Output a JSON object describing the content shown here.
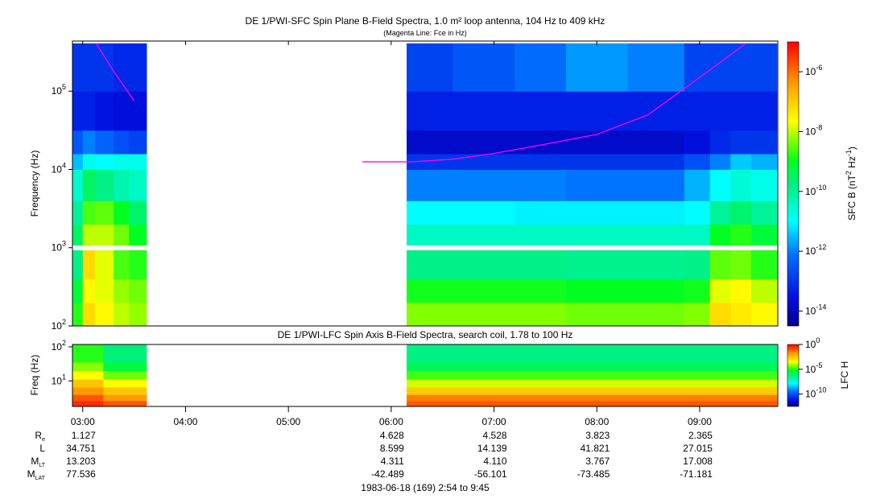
{
  "chart_data": [
    {
      "type": "heatmap",
      "title": "DE 1/PWI-SFC  Spin Plane B-Field Spectra, 1.0 m² loop antenna, 104 Hz to 409 kHz",
      "subtitle": "(Magenta Line: Fce in Hz)",
      "ylabel": "Frequency (Hz)",
      "yscale": "log",
      "ylim": [
        100,
        409000
      ],
      "y_ticks": [
        {
          "base": "10",
          "exp": "2"
        },
        {
          "base": "10",
          "exp": "3"
        },
        {
          "base": "10",
          "exp": "4"
        },
        {
          "base": "10",
          "exp": "5"
        }
      ],
      "xlim_hours": [
        2.9,
        9.75
      ],
      "colorbar": {
        "label": "SFC B (nT² Hz⁻¹)",
        "label_main": "SFC B (nT",
        "label_sup1": "2",
        "label_mid": " Hz",
        "label_sup2": "-1",
        "label_end": ")",
        "range_log10": [
          -14.5,
          -5
        ],
        "ticks": [
          {
            "base": "10",
            "exp": "-6"
          },
          {
            "base": "10",
            "exp": "-8"
          },
          {
            "base": "10",
            "exp": "-10"
          },
          {
            "base": "10",
            "exp": "-12"
          },
          {
            "base": "10",
            "exp": "-14"
          }
        ]
      },
      "freq_band_edges_log10": [
        2.0,
        2.3,
        2.6,
        3.0,
        3.3,
        3.6,
        4.0,
        4.2,
        4.5,
        5.0,
        5.61
      ],
      "columns": [
        {
          "t": [
            2.9,
            3.0
          ],
          "v": [
            -8.8,
            -9.2,
            -9.8,
            -9.5,
            -10.0,
            -10.5,
            -11.5,
            -12.5,
            -13.3,
            -13.0
          ]
        },
        {
          "t": [
            3.0,
            3.12
          ],
          "v": [
            -7.2,
            -7.6,
            -7.2,
            -8.0,
            -8.6,
            -9.5,
            -10.8,
            -12.0,
            -13.3,
            -13.0
          ]
        },
        {
          "t": [
            3.12,
            3.3
          ],
          "v": [
            -7.6,
            -7.8,
            -7.8,
            -8.0,
            -8.5,
            -9.8,
            -11.0,
            -12.3,
            -13.5,
            -13.0
          ]
        },
        {
          "t": [
            3.3,
            3.45
          ],
          "v": [
            -8.0,
            -8.2,
            -8.6,
            -8.4,
            -9.0,
            -10.2,
            -10.8,
            -12.6,
            -13.6,
            -13.2
          ]
        },
        {
          "t": [
            3.45,
            3.62
          ],
          "v": [
            -8.2,
            -8.4,
            -8.8,
            -9.0,
            -9.6,
            -10.4,
            -10.8,
            -12.8,
            -13.6,
            -13.2
          ]
        },
        {
          "t": [
            6.15,
            6.6
          ],
          "v": [
            -8.3,
            -8.9,
            -9.8,
            -10.4,
            -11.0,
            -12.0,
            -13.0,
            -13.8,
            -13.3,
            -12.8
          ]
        },
        {
          "t": [
            6.6,
            7.2
          ],
          "v": [
            -8.3,
            -8.9,
            -9.8,
            -10.4,
            -11.0,
            -12.0,
            -13.0,
            -13.8,
            -13.3,
            -12.5
          ]
        },
        {
          "t": [
            7.2,
            7.7
          ],
          "v": [
            -8.3,
            -8.9,
            -9.8,
            -10.4,
            -11.1,
            -12.0,
            -13.0,
            -13.8,
            -13.3,
            -12.2
          ]
        },
        {
          "t": [
            7.7,
            8.3
          ],
          "v": [
            -8.4,
            -9.0,
            -9.9,
            -10.4,
            -11.1,
            -12.1,
            -13.0,
            -13.8,
            -13.3,
            -11.8
          ]
        },
        {
          "t": [
            8.3,
            8.85
          ],
          "v": [
            -8.4,
            -9.0,
            -9.9,
            -10.4,
            -11.1,
            -12.1,
            -13.0,
            -13.8,
            -13.3,
            -12.0
          ]
        },
        {
          "t": [
            8.85,
            9.1
          ],
          "v": [
            -8.3,
            -8.9,
            -9.8,
            -10.4,
            -11.0,
            -11.6,
            -12.6,
            -13.6,
            -13.3,
            -12.8
          ]
        },
        {
          "t": [
            9.1,
            9.3
          ],
          "v": [
            -7.2,
            -7.8,
            -8.5,
            -9.0,
            -10.0,
            -11.0,
            -12.0,
            -13.2,
            -13.3,
            -12.8
          ]
        },
        {
          "t": [
            9.3,
            9.5
          ],
          "v": [
            -7.4,
            -7.6,
            -8.4,
            -8.8,
            -9.6,
            -10.6,
            -11.4,
            -13.0,
            -13.3,
            -12.8
          ]
        },
        {
          "t": [
            9.5,
            9.75
          ],
          "v": [
            -7.6,
            -8.0,
            -8.8,
            -9.2,
            -10.0,
            -10.8,
            -11.6,
            -13.0,
            -13.3,
            -12.8
          ]
        }
      ],
      "fce_line": [
        {
          "segment": [
            [
              3.13,
              409000
            ],
            [
              3.3,
              180000
            ],
            [
              3.5,
              75000
            ]
          ]
        },
        {
          "segment": [
            [
              5.72,
              12500
            ],
            [
              6.2,
              12500
            ],
            [
              6.6,
              13500
            ],
            [
              7.0,
              16000
            ],
            [
              7.5,
              21000
            ],
            [
              8.0,
              28000
            ],
            [
              8.5,
              50000
            ],
            [
              9.0,
              150000
            ],
            [
              9.25,
              260000
            ],
            [
              9.45,
              409000
            ]
          ]
        }
      ]
    },
    {
      "type": "heatmap",
      "title": "DE 1/PWI-LFC  Spin Axis B-Field Spectra, search coil, 1.78 to 100 Hz",
      "ylabel": "Freq (Hz)",
      "yscale": "log",
      "ylim": [
        1.78,
        100
      ],
      "y_ticks": [
        {
          "base": "10",
          "exp": "2"
        },
        {
          "base": "10",
          "exp": "1"
        }
      ],
      "colorbar": {
        "label": "LFC H",
        "range_log10": [
          -12.5,
          0
        ],
        "ticks": [
          {
            "base": "10",
            "exp": "0"
          },
          {
            "base": "10",
            "exp": "-5"
          },
          {
            "base": "10",
            "exp": "-10"
          }
        ]
      },
      "freq_band_edges_log10": [
        0.25,
        0.42,
        0.6,
        0.82,
        1.05,
        1.3,
        1.55,
        2.07
      ],
      "columns": [
        {
          "t": [
            2.9,
            3.2
          ],
          "v": [
            -0.5,
            -1.0,
            -1.8,
            -2.5,
            -3.5,
            -4.3,
            -5.0
          ]
        },
        {
          "t": [
            3.2,
            3.62
          ],
          "v": [
            -1.0,
            -1.8,
            -2.5,
            -3.5,
            -4.5,
            -5.5,
            -6.2
          ]
        },
        {
          "t": [
            6.15,
            9.75
          ],
          "v": [
            -1.0,
            -1.5,
            -2.6,
            -3.8,
            -4.8,
            -5.8,
            -6.3
          ]
        }
      ]
    }
  ],
  "time_axis": {
    "ticks": [
      "03:00",
      "04:00",
      "05:00",
      "06:00",
      "07:00",
      "08:00",
      "09:00"
    ],
    "tick_hours": [
      3,
      4,
      5,
      6,
      7,
      8,
      9
    ]
  },
  "ephemeris": {
    "rows": [
      {
        "label": "R",
        "sub": "e",
        "values": [
          "1.127",
          "",
          "",
          "4.628",
          "4.528",
          "3.823",
          "2.365"
        ]
      },
      {
        "label": "L",
        "sub": "",
        "values": [
          "34.751",
          "",
          "",
          "8.599",
          "14.139",
          "41.821",
          "27.015"
        ]
      },
      {
        "label": "M",
        "sub": "LT",
        "values": [
          "13.203",
          "",
          "",
          "4.311",
          "4.110",
          "3.767",
          "17.008"
        ]
      },
      {
        "label": "M",
        "sub": "LAT",
        "values": [
          "77.536",
          "",
          "",
          "-42.489",
          "-56.101",
          "-73.485",
          "-71.181"
        ]
      }
    ],
    "date_range": "1983-06-18 (169) 2:54 to 9:45"
  },
  "colors": {
    "fce_line": "#ff00ff",
    "background": "#ffffff"
  }
}
